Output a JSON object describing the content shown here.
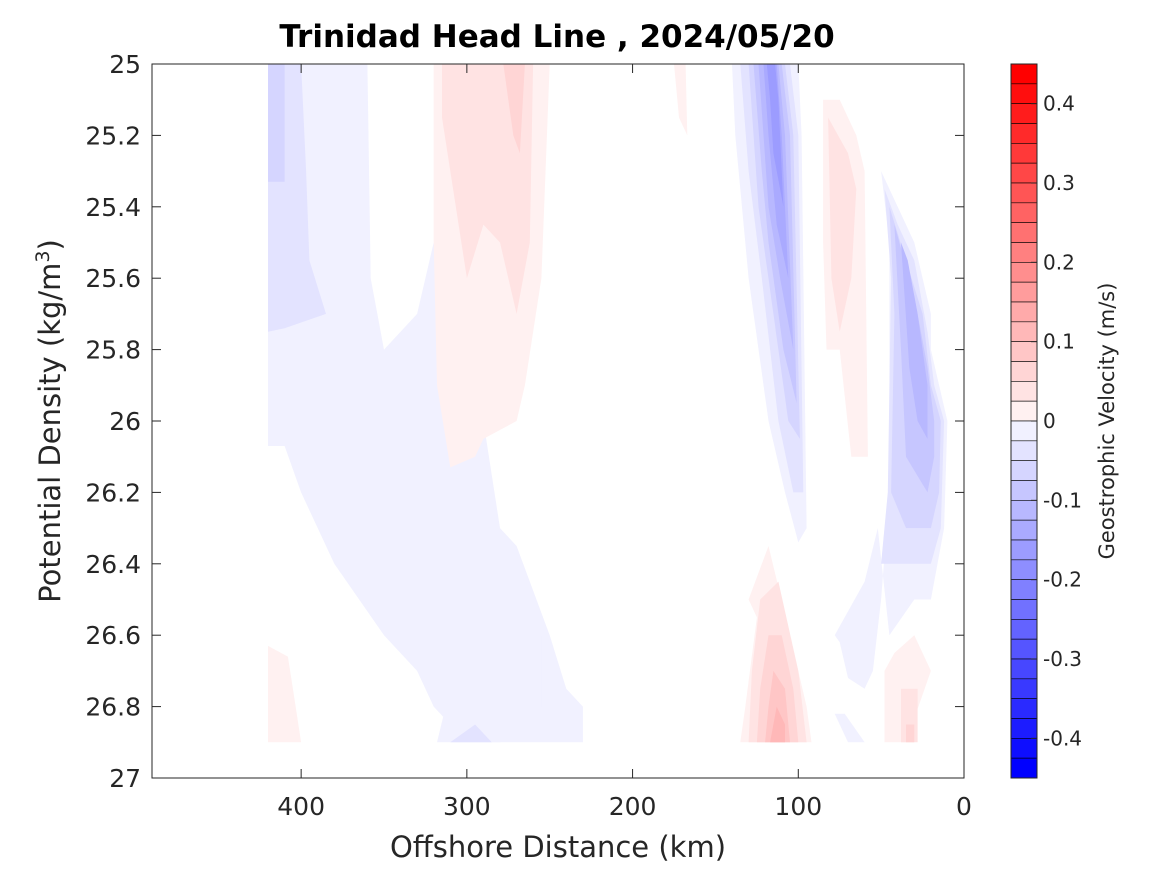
{
  "chart_data": {
    "type": "heatmap",
    "subtype": "filled-contour",
    "title": "Trinidad Head Line , 2024/05/20",
    "xlabel": "Offshore Distance (km)",
    "ylabel_main": "Potential Density (kg/m",
    "ylabel_sup": "3",
    "ylabel_close": ")",
    "colorbar_label": "Geostrophic Velocity (m/s)",
    "x_axis": {
      "range": [
        490,
        0
      ],
      "reversed": true,
      "ticks": [
        400,
        300,
        200,
        100,
        0
      ],
      "tick_labels": [
        "400",
        "300",
        "200",
        "100",
        "0"
      ]
    },
    "y_axis": {
      "range": [
        25,
        27
      ],
      "reversed": true,
      "ticks": [
        25,
        25.2,
        25.4,
        25.6,
        25.8,
        26,
        26.2,
        26.4,
        26.6,
        26.8,
        27
      ],
      "tick_labels": [
        "25",
        "25.2",
        "25.4",
        "25.6",
        "25.8",
        "26",
        "26.2",
        "26.4",
        "26.6",
        "26.8",
        "27"
      ]
    },
    "colorbar": {
      "range": [
        -0.45,
        0.45
      ],
      "step": 0.025,
      "min_color": "#0000ff",
      "mid_color": "#ffffff",
      "max_color": "#ff0000",
      "ticks": [
        0.4,
        0.3,
        0.2,
        0.1,
        0,
        -0.1,
        -0.2,
        -0.3,
        -0.4
      ],
      "tick_labels": [
        "0.4",
        "0.3",
        "0.2",
        "0.1",
        "0",
        "-0.1",
        "-0.2",
        "-0.3",
        "-0.4"
      ]
    },
    "grid": false,
    "regions": [
      {
        "sign": "neg",
        "level": 1,
        "pts": [
          [
            420,
            25
          ],
          [
            360,
            25
          ],
          [
            358,
            25.6
          ],
          [
            350,
            25.8
          ],
          [
            330,
            25.7
          ],
          [
            320,
            25.5
          ],
          [
            305,
            25.8
          ],
          [
            290,
            26
          ],
          [
            280,
            26.3
          ],
          [
            270,
            26.35
          ],
          [
            250,
            26.6
          ],
          [
            240,
            26.75
          ],
          [
            230,
            26.8
          ],
          [
            230,
            26.9
          ],
          [
            300,
            26.9
          ],
          [
            320,
            26.8
          ],
          [
            330,
            26.7
          ],
          [
            350,
            26.6
          ],
          [
            380,
            26.4
          ],
          [
            400,
            26.2
          ],
          [
            410,
            26.07
          ],
          [
            420,
            26.07
          ]
        ]
      },
      {
        "sign": "neg",
        "level": 2,
        "pts": [
          [
            420,
            25
          ],
          [
            400,
            25
          ],
          [
            397,
            25.3
          ],
          [
            395,
            25.55
          ],
          [
            385,
            25.7
          ],
          [
            410,
            25.74
          ],
          [
            420,
            25.75
          ]
        ]
      },
      {
        "sign": "neg",
        "level": 3,
        "pts": [
          [
            420,
            25
          ],
          [
            410,
            25
          ],
          [
            410,
            25.33
          ],
          [
            420,
            25.33
          ]
        ]
      },
      {
        "sign": "neg",
        "level": 1,
        "pts": [
          [
            318,
            26.9
          ],
          [
            280,
            26.9
          ],
          [
            265,
            26.8
          ],
          [
            255,
            26.8
          ],
          [
            255,
            26.6
          ],
          [
            270,
            26.55
          ],
          [
            290,
            26.7
          ],
          [
            305,
            26.65
          ]
        ]
      },
      {
        "sign": "neg",
        "level": 2,
        "pts": [
          [
            310,
            26.9
          ],
          [
            285,
            26.9
          ],
          [
            295,
            26.85
          ]
        ]
      },
      {
        "sign": "pos",
        "level": 1,
        "pts": [
          [
            320,
            25
          ],
          [
            250,
            25
          ],
          [
            255,
            25.6
          ],
          [
            265,
            25.9
          ],
          [
            270,
            26.0
          ],
          [
            290,
            26.05
          ],
          [
            295,
            26.1
          ],
          [
            310,
            26.13
          ],
          [
            318,
            25.9
          ],
          [
            320,
            25.5
          ]
        ]
      },
      {
        "sign": "pos",
        "level": 2,
        "pts": [
          [
            315,
            25
          ],
          [
            260,
            25
          ],
          [
            262,
            25.5
          ],
          [
            270,
            25.7
          ],
          [
            280,
            25.5
          ],
          [
            290,
            25.45
          ],
          [
            300,
            25.6
          ],
          [
            310,
            25.3
          ],
          [
            315,
            25.15
          ]
        ]
      },
      {
        "sign": "pos",
        "level": 3,
        "pts": [
          [
            278,
            25
          ],
          [
            265,
            25
          ],
          [
            268,
            25.25
          ],
          [
            272,
            25.2
          ]
        ]
      },
      {
        "sign": "pos",
        "level": 1,
        "pts": [
          [
            175,
            25
          ],
          [
            168,
            25
          ],
          [
            167,
            25.2
          ],
          [
            172,
            25.15
          ]
        ]
      },
      {
        "sign": "neg",
        "level": 1,
        "pts": [
          [
            140,
            25
          ],
          [
            100,
            25
          ],
          [
            98,
            25.2
          ],
          [
            95,
            26.3
          ],
          [
            100,
            26.34
          ],
          [
            108,
            26.2
          ],
          [
            118,
            26.0
          ],
          [
            130,
            25.6
          ],
          [
            138,
            25.2
          ]
        ]
      },
      {
        "sign": "neg",
        "level": 2,
        "pts": [
          [
            135,
            25
          ],
          [
            105,
            25
          ],
          [
            100,
            25.2
          ],
          [
            97,
            26.2
          ],
          [
            103,
            26.2
          ],
          [
            112,
            26.0
          ],
          [
            122,
            25.6
          ],
          [
            130,
            25.3
          ]
        ]
      },
      {
        "sign": "neg",
        "level": 3,
        "pts": [
          [
            130,
            25
          ],
          [
            108,
            25
          ],
          [
            103,
            25.2
          ],
          [
            99,
            26.05
          ],
          [
            106,
            26.0
          ],
          [
            115,
            25.7
          ],
          [
            124,
            25.4
          ]
        ]
      },
      {
        "sign": "neg",
        "level": 4,
        "pts": [
          [
            127,
            25
          ],
          [
            110,
            25
          ],
          [
            105,
            25.2
          ],
          [
            101,
            25.95
          ],
          [
            109,
            25.8
          ],
          [
            118,
            25.5
          ],
          [
            122,
            25.3
          ]
        ]
      },
      {
        "sign": "neg",
        "level": 5,
        "pts": [
          [
            124,
            25
          ],
          [
            112,
            25
          ],
          [
            108,
            25.2
          ],
          [
            103,
            25.8
          ],
          [
            111,
            25.6
          ],
          [
            118,
            25.4
          ],
          [
            121,
            25.2
          ]
        ]
      },
      {
        "sign": "neg",
        "level": 6,
        "pts": [
          [
            121,
            25
          ],
          [
            113,
            25
          ],
          [
            110,
            25.2
          ],
          [
            106,
            25.6
          ],
          [
            113,
            25.45
          ],
          [
            118,
            25.2
          ]
        ]
      },
      {
        "sign": "neg",
        "level": 7,
        "pts": [
          [
            119,
            25
          ],
          [
            114,
            25
          ],
          [
            112,
            25.1
          ],
          [
            109,
            25.4
          ],
          [
            115,
            25.25
          ],
          [
            117,
            25.1
          ]
        ]
      },
      {
        "sign": "pos",
        "level": 1,
        "pts": [
          [
            85,
            25.1
          ],
          [
            75,
            25.1
          ],
          [
            65,
            25.2
          ],
          [
            60,
            25.3
          ],
          [
            58,
            26.1
          ],
          [
            68,
            26.1
          ],
          [
            75,
            25.8
          ],
          [
            83,
            25.8
          ],
          [
            85,
            25.5
          ]
        ]
      },
      {
        "sign": "pos",
        "level": 2,
        "pts": [
          [
            82,
            25.15
          ],
          [
            70,
            25.25
          ],
          [
            65,
            25.35
          ],
          [
            68,
            25.6
          ],
          [
            75,
            25.75
          ],
          [
            80,
            25.6
          ]
        ]
      },
      {
        "sign": "neg",
        "level": 1,
        "pts": [
          [
            50,
            25.3
          ],
          [
            45,
            25.5
          ],
          [
            45,
            26.2
          ],
          [
            50,
            26.5
          ],
          [
            55,
            26.7
          ],
          [
            60,
            26.75
          ],
          [
            70,
            26.72
          ],
          [
            75,
            26.62
          ],
          [
            78,
            26.6
          ],
          [
            60,
            26.45
          ],
          [
            52,
            26.3
          ],
          [
            45,
            26.6
          ],
          [
            30,
            26.5
          ],
          [
            20,
            26.5
          ],
          [
            12,
            26.3
          ],
          [
            10,
            26.0
          ],
          [
            15,
            25.9
          ],
          [
            20,
            25.8
          ],
          [
            20,
            25.7
          ],
          [
            30,
            25.5
          ],
          [
            40,
            25.4
          ]
        ]
      },
      {
        "sign": "neg",
        "level": 2,
        "pts": [
          [
            48,
            25.35
          ],
          [
            44,
            25.6
          ],
          [
            46,
            26.2
          ],
          [
            50,
            26.4
          ],
          [
            30,
            26.4
          ],
          [
            20,
            26.4
          ],
          [
            14,
            26.3
          ],
          [
            12,
            26.0
          ],
          [
            18,
            25.9
          ],
          [
            22,
            25.75
          ],
          [
            30,
            25.55
          ],
          [
            40,
            25.45
          ]
        ]
      },
      {
        "sign": "neg",
        "level": 3,
        "pts": [
          [
            45,
            25.4
          ],
          [
            42,
            25.7
          ],
          [
            44,
            26.2
          ],
          [
            35,
            26.3
          ],
          [
            20,
            26.3
          ],
          [
            15,
            26.2
          ],
          [
            14,
            26.0
          ],
          [
            20,
            25.9
          ],
          [
            25,
            25.7
          ],
          [
            35,
            25.55
          ]
        ]
      },
      {
        "sign": "neg",
        "level": 4,
        "pts": [
          [
            42,
            25.45
          ],
          [
            38,
            25.8
          ],
          [
            35,
            26.1
          ],
          [
            22,
            26.2
          ],
          [
            18,
            26.1
          ],
          [
            18,
            26.0
          ],
          [
            22,
            25.85
          ],
          [
            30,
            25.65
          ]
        ]
      },
      {
        "sign": "neg",
        "level": 5,
        "pts": [
          [
            38,
            25.5
          ],
          [
            33,
            25.85
          ],
          [
            28,
            26.0
          ],
          [
            22,
            26.05
          ],
          [
            22,
            25.9
          ],
          [
            28,
            25.7
          ],
          [
            34,
            25.55
          ]
        ]
      },
      {
        "sign": "pos",
        "level": 1,
        "pts": [
          [
            130,
            26.5
          ],
          [
            118,
            26.35
          ],
          [
            105,
            26.6
          ],
          [
            95,
            26.8
          ],
          [
            92,
            26.9
          ],
          [
            135,
            26.9
          ],
          [
            132,
            26.8
          ],
          [
            125,
            26.55
          ]
        ]
      },
      {
        "sign": "pos",
        "level": 2,
        "pts": [
          [
            123,
            26.5
          ],
          [
            112,
            26.45
          ],
          [
            100,
            26.7
          ],
          [
            95,
            26.9
          ],
          [
            130,
            26.9
          ],
          [
            128,
            26.7
          ]
        ]
      },
      {
        "sign": "pos",
        "level": 3,
        "pts": [
          [
            118,
            26.6
          ],
          [
            110,
            26.6
          ],
          [
            103,
            26.75
          ],
          [
            100,
            26.9
          ],
          [
            125,
            26.9
          ],
          [
            123,
            26.75
          ]
        ]
      },
      {
        "sign": "pos",
        "level": 4,
        "pts": [
          [
            115,
            26.7
          ],
          [
            108,
            26.75
          ],
          [
            105,
            26.9
          ],
          [
            120,
            26.9
          ],
          [
            118,
            26.8
          ]
        ]
      },
      {
        "sign": "pos",
        "level": 5,
        "pts": [
          [
            113,
            26.8
          ],
          [
            108,
            26.85
          ],
          [
            108,
            26.9
          ],
          [
            117,
            26.9
          ]
        ]
      },
      {
        "sign": "pos",
        "level": 1,
        "pts": [
          [
            48,
            26.7
          ],
          [
            42,
            26.65
          ],
          [
            30,
            26.6
          ],
          [
            20,
            26.7
          ],
          [
            35,
            26.9
          ],
          [
            48,
            26.9
          ]
        ]
      },
      {
        "sign": "pos",
        "level": 2,
        "pts": [
          [
            38,
            26.75
          ],
          [
            28,
            26.75
          ],
          [
            28,
            26.9
          ],
          [
            38,
            26.9
          ]
        ]
      },
      {
        "sign": "pos",
        "level": 3,
        "pts": [
          [
            35,
            26.85
          ],
          [
            30,
            26.85
          ],
          [
            30,
            26.9
          ],
          [
            35,
            26.9
          ]
        ]
      },
      {
        "sign": "pos",
        "level": 1,
        "pts": [
          [
            420,
            26.63
          ],
          [
            408,
            26.66
          ],
          [
            405,
            26.75
          ],
          [
            400,
            26.9
          ],
          [
            420,
            26.9
          ]
        ]
      },
      {
        "sign": "neg",
        "level": 1,
        "pts": [
          [
            78,
            26.82
          ],
          [
            70,
            26.9
          ],
          [
            60,
            26.9
          ],
          [
            72,
            26.82
          ]
        ]
      }
    ]
  }
}
